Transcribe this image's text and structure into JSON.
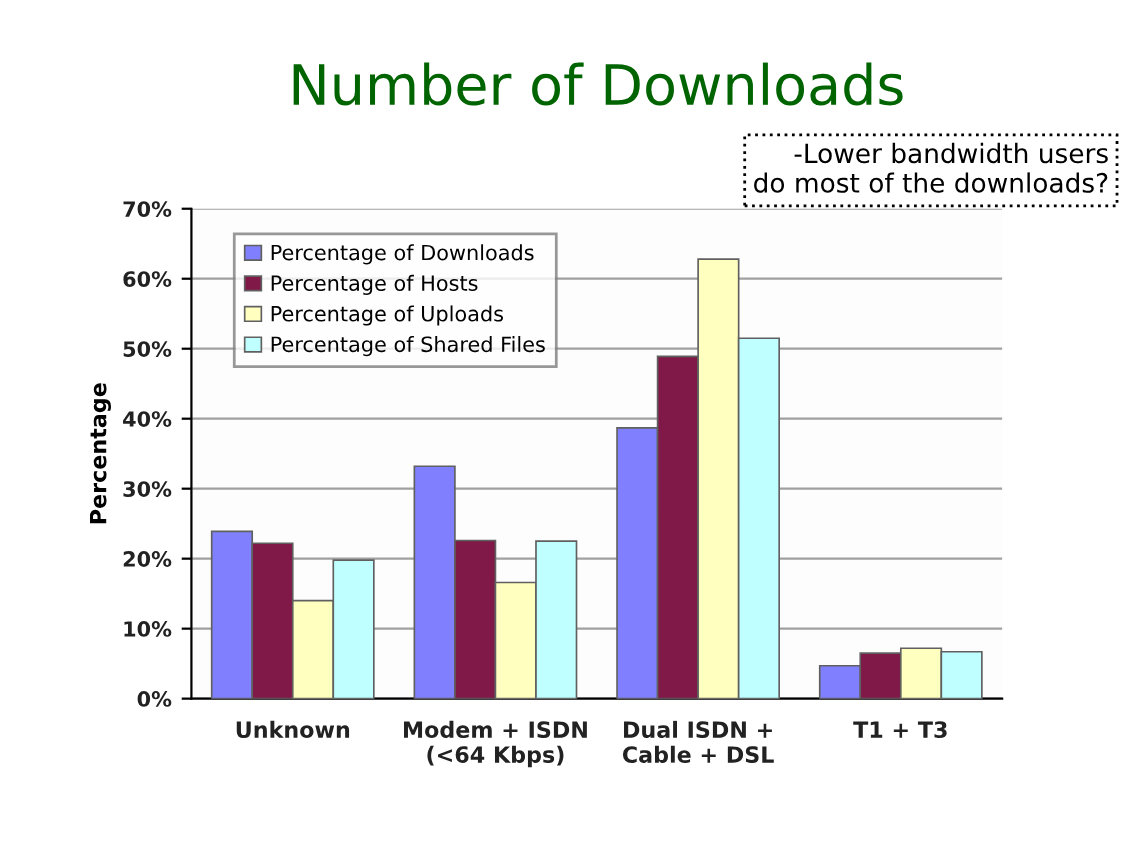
{
  "chart_data": {
    "type": "bar",
    "title": "Number of Downloads",
    "ylabel": "Percentage",
    "annotations": [
      "-Lower bandwidth users\ndo most of the downloads?"
    ],
    "categories": [
      "Unknown",
      "Modem + ISDN\n(<64 Kbps)",
      "Dual ISDN +\nCable + DSL",
      "T1 + T3"
    ],
    "series": [
      {
        "name": "Percentage of Downloads",
        "color": "#8080ff",
        "values": [
          23.9,
          33.2,
          38.7,
          4.7
        ]
      },
      {
        "name": "Percentage of Hosts",
        "color": "#801848",
        "values": [
          22.2,
          22.6,
          48.9,
          6.5
        ]
      },
      {
        "name": "Percentage of Uploads",
        "color": "#ffffc0",
        "values": [
          14.0,
          16.6,
          62.8,
          7.2
        ]
      },
      {
        "name": "Percentage of Shared Files",
        "color": "#c0ffff",
        "values": [
          19.8,
          22.5,
          51.5,
          6.7
        ]
      }
    ],
    "ylim": [
      0,
      70
    ],
    "yticks": [
      {
        "value": 0,
        "label": "0%"
      },
      {
        "value": 10,
        "label": "10%"
      },
      {
        "value": 20,
        "label": "20%"
      },
      {
        "value": 30,
        "label": "30%"
      },
      {
        "value": 40,
        "label": "40%"
      },
      {
        "value": 50,
        "label": "50%"
      },
      {
        "value": 60,
        "label": "60%"
      },
      {
        "value": 70,
        "label": "70%"
      }
    ],
    "grid": "y",
    "legend": "top left"
  }
}
